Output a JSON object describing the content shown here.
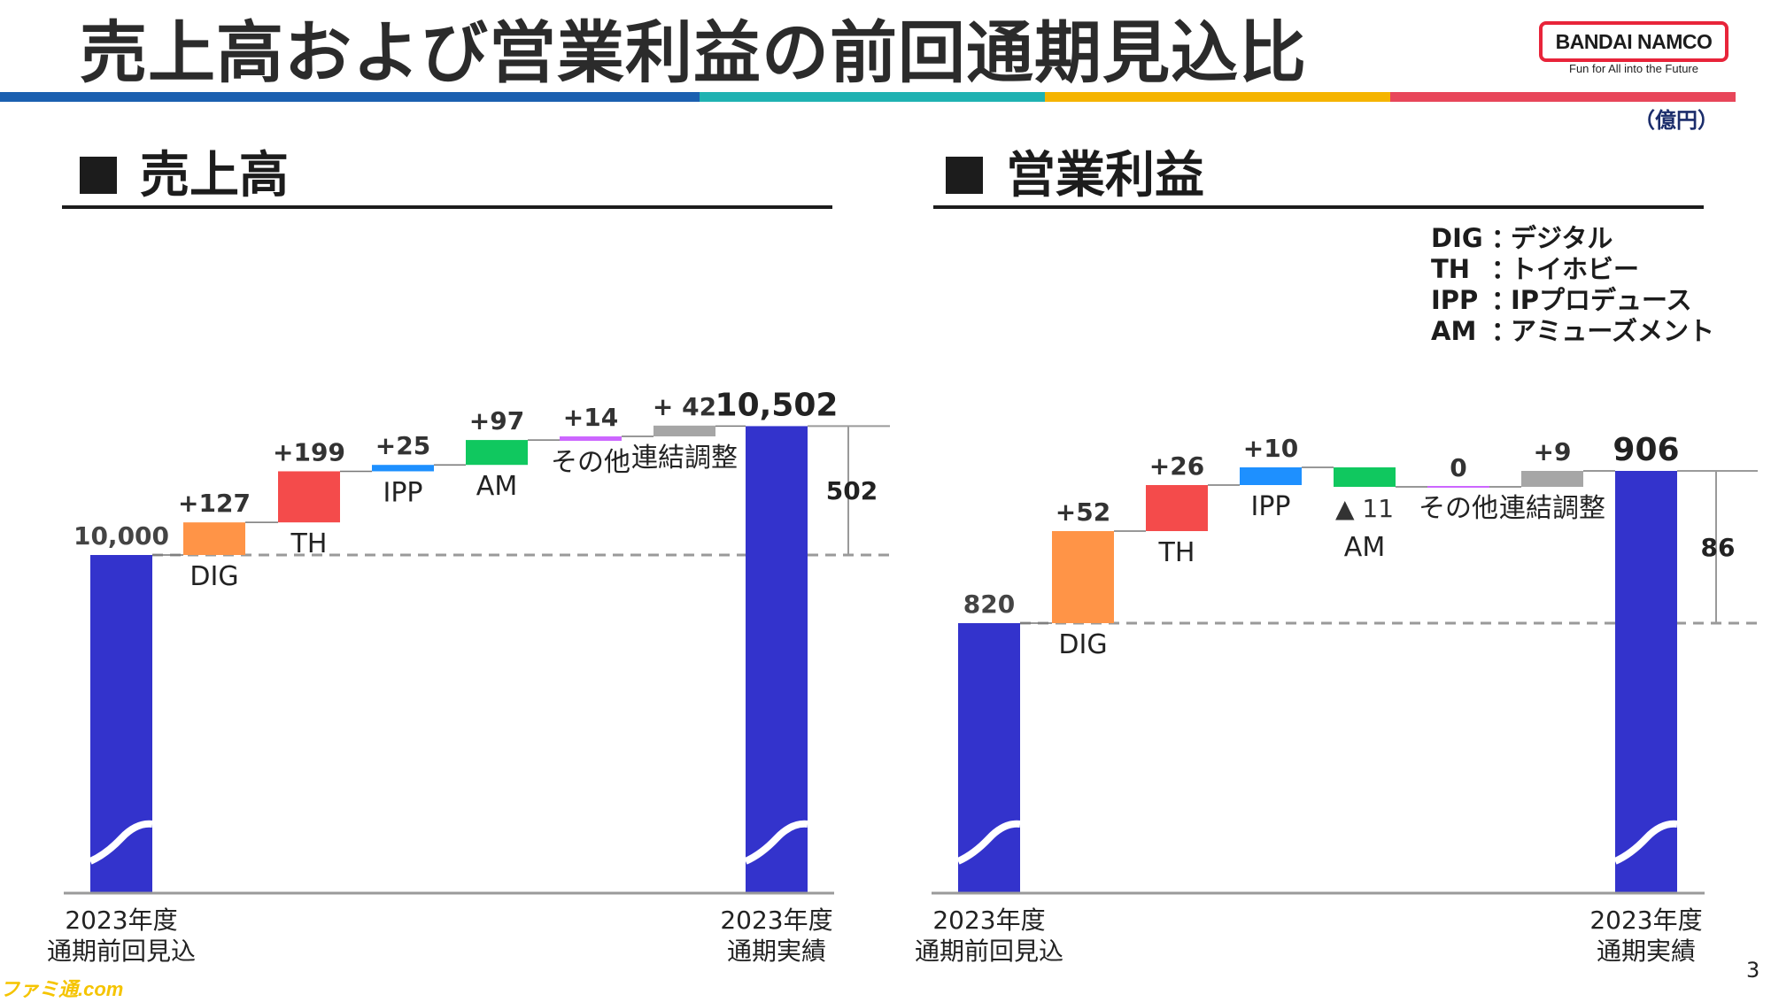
{
  "header": {
    "title": "売上高および営業利益の前回通期見込比",
    "logo_text": "BANDAI NAMCO",
    "logo_tagline": "Fun for All into the Future",
    "unit": "（億円）",
    "stripe_colors": [
      "#1b60b0",
      "#1fb2b2",
      "#f5b400",
      "#e8465a"
    ]
  },
  "page_number": "3",
  "watermark": "ファミ通.com",
  "legend": [
    {
      "abbr": "DIG",
      "sep": "：",
      "desc": "デジタル"
    },
    {
      "abbr": "TH",
      "sep": "：",
      "desc": "トイホビー"
    },
    {
      "abbr": "IPP",
      "sep": "：",
      "desc": "IPプロデュース"
    },
    {
      "abbr": "AM",
      "sep": "：",
      "desc": "アミューズメント"
    }
  ],
  "colors": {
    "total": "#3333cc",
    "DIG": "#ff9447",
    "TH": "#f44b4b",
    "IPP": "#1e90ff",
    "AM": "#10c85f",
    "その他": "#cc66ff",
    "連結調整": "#a6a6a6",
    "axis": "#9a9a9a"
  },
  "chart_data": [
    {
      "type": "waterfall",
      "title": "売上高",
      "start": {
        "label_lines": [
          "2023年度",
          "通期前回見込"
        ],
        "value": 10000,
        "value_label": "10,000"
      },
      "steps": [
        {
          "name": "DIG",
          "label": "DIG",
          "value": 127,
          "value_label": "+127"
        },
        {
          "name": "TH",
          "label": "TH",
          "value": 199,
          "value_label": "+199"
        },
        {
          "name": "IPP",
          "label": "IPP",
          "value": 25,
          "value_label": "+25"
        },
        {
          "name": "AM",
          "label": "AM",
          "value": 97,
          "value_label": "+97"
        },
        {
          "name": "その他",
          "label": "その他",
          "value": 14,
          "value_label": "+14"
        },
        {
          "name": "連結調整",
          "label": "連結調整",
          "value": 42,
          "value_label": "+ 42"
        }
      ],
      "end": {
        "label_lines": [
          "2023年度",
          "通期実績"
        ],
        "value": 10502,
        "value_label": "10,502"
      },
      "difference": {
        "value": 502,
        "label": "502"
      }
    },
    {
      "type": "waterfall",
      "title": "営業利益",
      "start": {
        "label_lines": [
          "2023年度",
          "通期前回見込"
        ],
        "value": 820,
        "value_label": "820"
      },
      "steps": [
        {
          "name": "DIG",
          "label": "DIG",
          "value": 52,
          "value_label": "+52"
        },
        {
          "name": "TH",
          "label": "TH",
          "value": 26,
          "value_label": "+26"
        },
        {
          "name": "IPP",
          "label": "IPP",
          "value": 10,
          "value_label": "+10"
        },
        {
          "name": "AM",
          "label": "AM",
          "value": -11,
          "value_label": "▲ 11"
        },
        {
          "name": "その他",
          "label": "その他",
          "value": 0,
          "value_label": "0"
        },
        {
          "name": "連結調整",
          "label": "連結調整",
          "value": 9,
          "value_label": "+9"
        }
      ],
      "end": {
        "label_lines": [
          "2023年度",
          "通期実績"
        ],
        "value": 906,
        "value_label": "906"
      },
      "difference": {
        "value": 86,
        "label": "86"
      }
    }
  ]
}
